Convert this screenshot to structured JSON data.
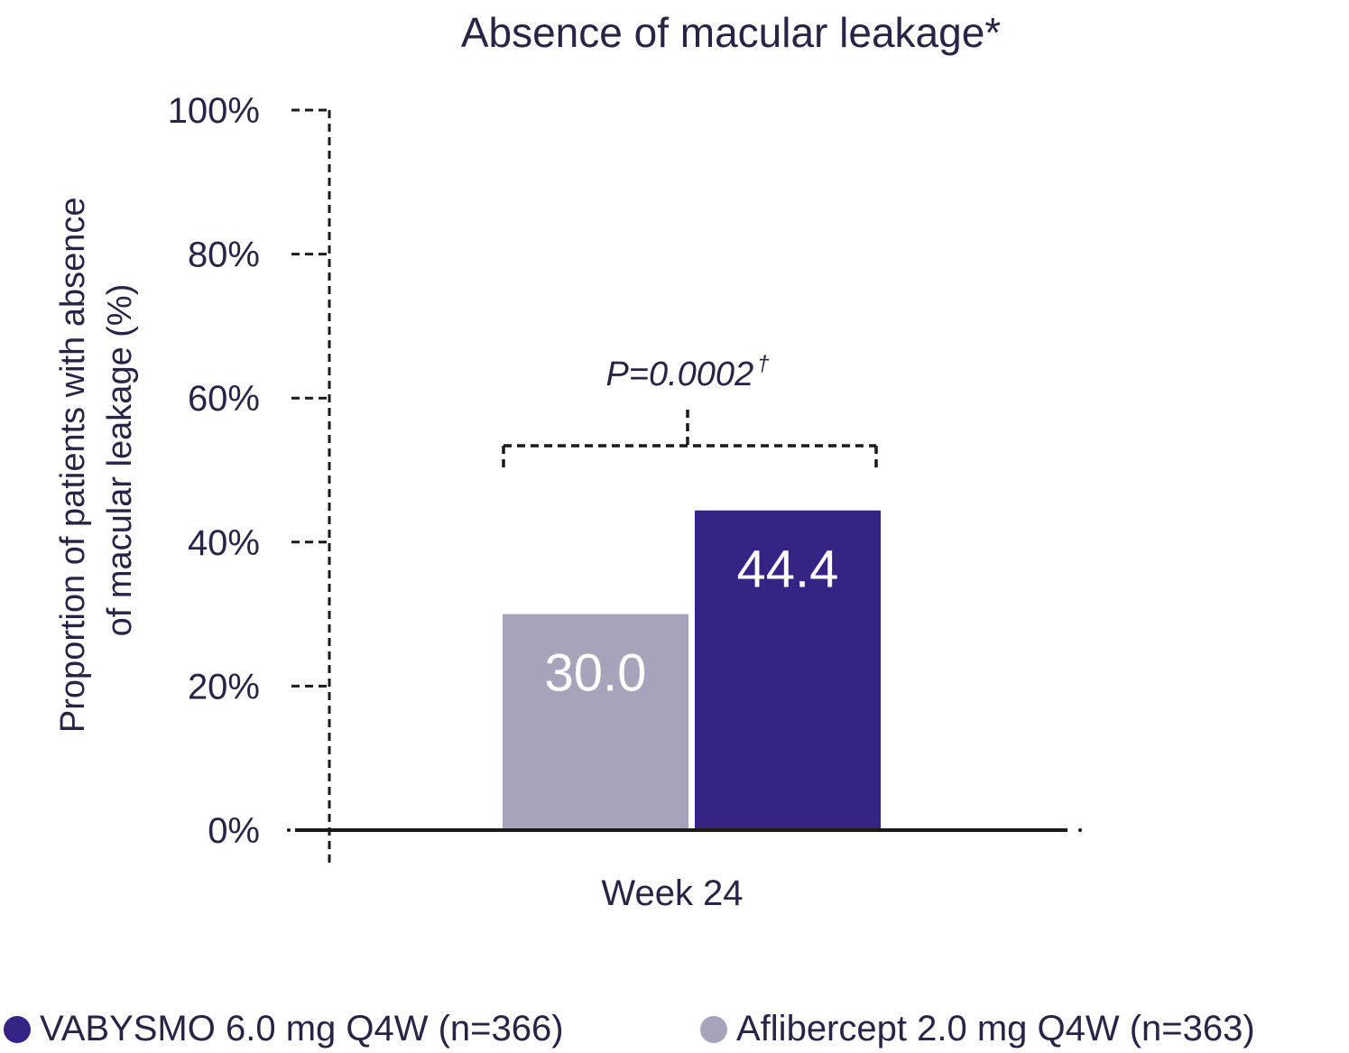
{
  "chart_data": {
    "type": "bar",
    "title": "Absence of macular leakage*",
    "ylabel_lines": [
      "Proportion of patients with absence",
      "of macular leakage (%)"
    ],
    "xlabel": "",
    "categories": [
      "Week 24"
    ],
    "ylim": [
      0,
      100
    ],
    "yticks": [
      {
        "value": 0,
        "label": "0%"
      },
      {
        "value": 20,
        "label": "20%"
      },
      {
        "value": 40,
        "label": "40%"
      },
      {
        "value": 60,
        "label": "60%"
      },
      {
        "value": 80,
        "label": "80%"
      },
      {
        "value": 100,
        "label": "100%"
      }
    ],
    "series": [
      {
        "name": "Aflibercept 2.0 mg Q4W (n=363)",
        "values": [
          30.0
        ],
        "value_labels": [
          "30.0"
        ],
        "color": "#a6a4bb"
      },
      {
        "name": "VABYSMO 6.0 mg Q4W (n=366)",
        "values": [
          44.4
        ],
        "value_labels": [
          "44.4"
        ],
        "color": "#372384"
      }
    ],
    "annotation": {
      "text": "P=0.0002",
      "superscript": "†"
    },
    "grid": false,
    "legend_position": "bottom"
  },
  "legend": [
    {
      "label": "VABYSMO 6.0 mg Q4W (n=366)",
      "color": "#372384"
    },
    {
      "label": "Aflibercept 2.0 mg Q4W (n=363)",
      "color": "#a6a4bb"
    }
  ]
}
